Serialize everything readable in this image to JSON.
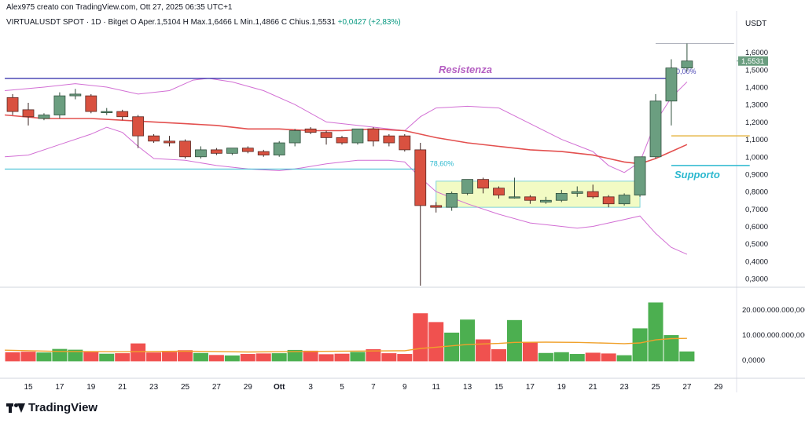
{
  "header": {
    "credit": "Alex975 creato con TradingView.com, Ott 27, 2025 06:35 UTC+1"
  },
  "legend": {
    "symbol": "VIRTUALUSDT SPOT · 1D · Bitget",
    "open_label": "O",
    "open": "Aper.1,5104",
    "high_label": "H",
    "high": "Max.1,6466",
    "low_label": "L",
    "low": "Min.1,4866",
    "close_label": "C",
    "close": "Chius.1,5531",
    "change": "+0,0427 (+2,83%)"
  },
  "brand": {
    "name": "TradingView"
  },
  "colors": {
    "up": "#6b9e80",
    "down": "#d95140",
    "vol_up": "#4caf50",
    "vol_down": "#f0514f",
    "bb": "#d26fd4",
    "ma": "#e3504f",
    "resistance": "#4b47b5",
    "support": "#2bb8cf",
    "fib": "#2bb8cf",
    "vol_ma": "#f0a12b",
    "gold_line": "#e6b84a",
    "range_box": "#f2fbc4"
  },
  "chart_data": {
    "type": "candlestick",
    "price_axis_label": "USDT",
    "price_range": [
      0.26,
      1.72
    ],
    "price_ticks": [
      "0,3000",
      "0,4000",
      "0,5000",
      "0,6000",
      "0,7000",
      "0,8000",
      "0,9000",
      "1,0000",
      "1,1000",
      "1,2000",
      "1,3000",
      "1,4000",
      "1,5000",
      "1,6000"
    ],
    "last_price_label": "1,5531",
    "volume_range": [
      -3000000000,
      27000000000
    ],
    "volume_ticks": [
      "0,0000",
      "10.000.000.000,0000",
      "20.000.000.000,0000"
    ],
    "x_ticks": [
      {
        "label": "15",
        "day": 0
      },
      {
        "label": "17",
        "day": 2
      },
      {
        "label": "19",
        "day": 4
      },
      {
        "label": "21",
        "day": 6
      },
      {
        "label": "23",
        "day": 8
      },
      {
        "label": "25",
        "day": 10
      },
      {
        "label": "27",
        "day": 12
      },
      {
        "label": "29",
        "day": 14
      },
      {
        "label": "Ott",
        "day": 16
      },
      {
        "label": "3",
        "day": 18
      },
      {
        "label": "5",
        "day": 20
      },
      {
        "label": "7",
        "day": 22
      },
      {
        "label": "9",
        "day": 24
      },
      {
        "label": "11",
        "day": 26
      },
      {
        "label": "13",
        "day": 28
      },
      {
        "label": "15",
        "day": 30
      },
      {
        "label": "17",
        "day": 32
      },
      {
        "label": "19",
        "day": 34
      },
      {
        "label": "21",
        "day": 36
      },
      {
        "label": "23",
        "day": 38
      },
      {
        "label": "25",
        "day": 40
      },
      {
        "label": "27",
        "day": 42
      },
      {
        "label": "29",
        "day": 44
      }
    ],
    "candles": [
      {
        "day": -1,
        "o": 1.34,
        "h": 1.36,
        "l": 1.24,
        "c": 1.26,
        "v": 3000000000
      },
      {
        "day": 0,
        "o": 1.27,
        "h": 1.31,
        "l": 1.18,
        "c": 1.23,
        "v": 3200000000
      },
      {
        "day": 1,
        "o": 1.22,
        "h": 1.25,
        "l": 1.21,
        "c": 1.24,
        "v": 2900000000
      },
      {
        "day": 2,
        "o": 1.24,
        "h": 1.37,
        "l": 1.22,
        "c": 1.35,
        "v": 4300000000
      },
      {
        "day": 3,
        "o": 1.35,
        "h": 1.39,
        "l": 1.33,
        "c": 1.36,
        "v": 4000000000
      },
      {
        "day": 4,
        "o": 1.35,
        "h": 1.36,
        "l": 1.25,
        "c": 1.26,
        "v": 3300000000
      },
      {
        "day": 5,
        "o": 1.26,
        "h": 1.28,
        "l": 1.24,
        "c": 1.26,
        "v": 2400000000
      },
      {
        "day": 6,
        "o": 1.26,
        "h": 1.27,
        "l": 1.21,
        "c": 1.23,
        "v": 2600000000
      },
      {
        "day": 7,
        "o": 1.23,
        "h": 1.24,
        "l": 1.05,
        "c": 1.12,
        "v": 6500000000
      },
      {
        "day": 8,
        "o": 1.12,
        "h": 1.13,
        "l": 1.08,
        "c": 1.09,
        "v": 2900000000
      },
      {
        "day": 9,
        "o": 1.09,
        "h": 1.12,
        "l": 1.06,
        "c": 1.08,
        "v": 3100000000
      },
      {
        "day": 10,
        "o": 1.09,
        "h": 1.1,
        "l": 0.99,
        "c": 1.0,
        "v": 3800000000
      },
      {
        "day": 11,
        "o": 1.0,
        "h": 1.06,
        "l": 0.99,
        "c": 1.04,
        "v": 2700000000
      },
      {
        "day": 12,
        "o": 1.04,
        "h": 1.05,
        "l": 1.01,
        "c": 1.02,
        "v": 1900000000
      },
      {
        "day": 13,
        "o": 1.02,
        "h": 1.05,
        "l": 1.01,
        "c": 1.05,
        "v": 1700000000
      },
      {
        "day": 14,
        "o": 1.05,
        "h": 1.06,
        "l": 1.02,
        "c": 1.03,
        "v": 2300000000
      },
      {
        "day": 15,
        "o": 1.03,
        "h": 1.04,
        "l": 1.0,
        "c": 1.01,
        "v": 2500000000
      },
      {
        "day": 16,
        "o": 1.01,
        "h": 1.09,
        "l": 1.0,
        "c": 1.08,
        "v": 2600000000
      },
      {
        "day": 17,
        "o": 1.08,
        "h": 1.16,
        "l": 1.06,
        "c": 1.15,
        "v": 3900000000
      },
      {
        "day": 18,
        "o": 1.16,
        "h": 1.17,
        "l": 1.13,
        "c": 1.14,
        "v": 3600000000
      },
      {
        "day": 19,
        "o": 1.14,
        "h": 1.15,
        "l": 1.07,
        "c": 1.11,
        "v": 2200000000
      },
      {
        "day": 20,
        "o": 1.11,
        "h": 1.12,
        "l": 1.07,
        "c": 1.08,
        "v": 2400000000
      },
      {
        "day": 21,
        "o": 1.08,
        "h": 1.16,
        "l": 1.07,
        "c": 1.16,
        "v": 3100000000
      },
      {
        "day": 22,
        "o": 1.16,
        "h": 1.17,
        "l": 1.06,
        "c": 1.09,
        "v": 4200000000
      },
      {
        "day": 23,
        "o": 1.12,
        "h": 1.13,
        "l": 1.06,
        "c": 1.08,
        "v": 2600000000
      },
      {
        "day": 24,
        "o": 1.12,
        "h": 1.13,
        "l": 1.03,
        "c": 1.04,
        "v": 2300000000
      },
      {
        "day": 25,
        "o": 1.04,
        "h": 1.08,
        "l": 0.26,
        "c": 0.72,
        "v": 18500000000
      },
      {
        "day": 26,
        "o": 0.72,
        "h": 0.74,
        "l": 0.68,
        "c": 0.71,
        "v": 15000000000
      },
      {
        "day": 27,
        "o": 0.71,
        "h": 0.8,
        "l": 0.69,
        "c": 0.79,
        "v": 10800000000
      },
      {
        "day": 28,
        "o": 0.79,
        "h": 0.87,
        "l": 0.78,
        "c": 0.87,
        "v": 16000000000
      },
      {
        "day": 29,
        "o": 0.87,
        "h": 0.88,
        "l": 0.79,
        "c": 0.82,
        "v": 8100000000
      },
      {
        "day": 30,
        "o": 0.82,
        "h": 0.83,
        "l": 0.76,
        "c": 0.78,
        "v": 4200000000
      },
      {
        "day": 31,
        "o": 0.77,
        "h": 0.88,
        "l": 0.76,
        "c": 0.77,
        "v": 15800000000
      },
      {
        "day": 32,
        "o": 0.77,
        "h": 0.78,
        "l": 0.73,
        "c": 0.75,
        "v": 7000000000
      },
      {
        "day": 33,
        "o": 0.74,
        "h": 0.77,
        "l": 0.73,
        "c": 0.75,
        "v": 2700000000
      },
      {
        "day": 34,
        "o": 0.75,
        "h": 0.81,
        "l": 0.74,
        "c": 0.79,
        "v": 3000000000
      },
      {
        "day": 35,
        "o": 0.79,
        "h": 0.83,
        "l": 0.77,
        "c": 0.8,
        "v": 2300000000
      },
      {
        "day": 36,
        "o": 0.8,
        "h": 0.84,
        "l": 0.76,
        "c": 0.77,
        "v": 2800000000
      },
      {
        "day": 37,
        "o": 0.77,
        "h": 0.78,
        "l": 0.71,
        "c": 0.73,
        "v": 2500000000
      },
      {
        "day": 38,
        "o": 0.73,
        "h": 0.79,
        "l": 0.72,
        "c": 0.78,
        "v": 1800000000
      },
      {
        "day": 39,
        "o": 0.78,
        "h": 1.0,
        "l": 0.77,
        "c": 1.0,
        "v": 12500000000
      },
      {
        "day": 40,
        "o": 1.0,
        "h": 1.36,
        "l": 0.99,
        "c": 1.32,
        "v": 22800000000
      },
      {
        "day": 41,
        "o": 1.32,
        "h": 1.56,
        "l": 1.18,
        "c": 1.51,
        "v": 9800000000
      },
      {
        "day": 42,
        "o": 1.51,
        "h": 1.65,
        "l": 1.49,
        "c": 1.55,
        "v": 3300000000
      }
    ],
    "bb_upper": [
      [
        -1.5,
        1.38
      ],
      [
        1,
        1.4
      ],
      [
        3,
        1.42
      ],
      [
        5,
        1.4
      ],
      [
        7,
        1.36
      ],
      [
        9,
        1.38
      ],
      [
        10.5,
        1.44
      ],
      [
        11.5,
        1.45
      ],
      [
        13,
        1.43
      ],
      [
        15,
        1.38
      ],
      [
        17,
        1.3
      ],
      [
        19,
        1.2
      ],
      [
        21,
        1.18
      ],
      [
        23,
        1.16
      ],
      [
        24,
        1.15
      ],
      [
        25,
        1.23
      ],
      [
        26,
        1.28
      ],
      [
        28,
        1.29
      ],
      [
        30,
        1.28
      ],
      [
        32,
        1.19
      ],
      [
        34,
        1.1
      ],
      [
        36,
        1.03
      ],
      [
        37,
        0.95
      ],
      [
        38,
        0.91
      ],
      [
        39,
        0.97
      ],
      [
        40,
        1.2
      ],
      [
        41,
        1.34
      ],
      [
        42,
        1.43
      ]
    ],
    "bb_lower": [
      [
        -1.5,
        1.0
      ],
      [
        0,
        1.01
      ],
      [
        2,
        1.07
      ],
      [
        4,
        1.13
      ],
      [
        5,
        1.17
      ],
      [
        6,
        1.14
      ],
      [
        7,
        1.06
      ],
      [
        8,
        0.99
      ],
      [
        10,
        0.98
      ],
      [
        12,
        0.95
      ],
      [
        14,
        0.93
      ],
      [
        16,
        0.92
      ],
      [
        17,
        0.93
      ],
      [
        19,
        0.96
      ],
      [
        21,
        0.98
      ],
      [
        23,
        0.98
      ],
      [
        24,
        0.97
      ],
      [
        25,
        0.88
      ],
      [
        26,
        0.8
      ],
      [
        28,
        0.73
      ],
      [
        30,
        0.67
      ],
      [
        32,
        0.62
      ],
      [
        34,
        0.6
      ],
      [
        35,
        0.59
      ],
      [
        36,
        0.6
      ],
      [
        37,
        0.62
      ],
      [
        38,
        0.64
      ],
      [
        39,
        0.66
      ],
      [
        40,
        0.56
      ],
      [
        41,
        0.48
      ],
      [
        42,
        0.44
      ]
    ],
    "ma_line": [
      [
        -1.5,
        1.24
      ],
      [
        1,
        1.22
      ],
      [
        4,
        1.22
      ],
      [
        6,
        1.21
      ],
      [
        8,
        1.2
      ],
      [
        10,
        1.19
      ],
      [
        12,
        1.18
      ],
      [
        14,
        1.16
      ],
      [
        16,
        1.16
      ],
      [
        18,
        1.15
      ],
      [
        20,
        1.15
      ],
      [
        22,
        1.16
      ],
      [
        24,
        1.15
      ],
      [
        26,
        1.11
      ],
      [
        28,
        1.08
      ],
      [
        30,
        1.06
      ],
      [
        32,
        1.04
      ],
      [
        34,
        1.03
      ],
      [
        36,
        1.01
      ],
      [
        37,
        0.99
      ],
      [
        38,
        0.97
      ],
      [
        39,
        0.96
      ],
      [
        40,
        0.99
      ],
      [
        41,
        1.03
      ],
      [
        42,
        1.07
      ]
    ],
    "vol_ma": [
      [
        -1.5,
        3800000000
      ],
      [
        2,
        3300000000
      ],
      [
        6,
        3200000000
      ],
      [
        10,
        3400000000
      ],
      [
        14,
        3100000000
      ],
      [
        18,
        3300000000
      ],
      [
        22,
        3500000000
      ],
      [
        24,
        3600000000
      ],
      [
        25,
        4500000000
      ],
      [
        26,
        5000000000
      ],
      [
        28,
        6100000000
      ],
      [
        30,
        6500000000
      ],
      [
        31,
        6900000000
      ],
      [
        33,
        7000000000
      ],
      [
        35,
        6900000000
      ],
      [
        37,
        6600000000
      ],
      [
        38,
        6400000000
      ],
      [
        39,
        6700000000
      ],
      [
        40,
        7900000000
      ],
      [
        41,
        8400000000
      ],
      [
        42,
        8500000000
      ]
    ],
    "resistance": {
      "label": "Resistenza",
      "price": 1.45,
      "from_day": -1.5,
      "to_day": 41
    },
    "support": {
      "label": "Supporto",
      "price": 0.95,
      "from_day": 41,
      "to_day": 46
    },
    "fib_level": {
      "label": "78,60%",
      "price": 0.93,
      "from_day": -1.5,
      "to_day": 25
    },
    "fib_top": {
      "label": "0,00%",
      "price": 1.65,
      "from_day": 40,
      "to_day": 45
    },
    "gold_level": {
      "price": 1.12,
      "from_day": 41,
      "to_day": 46
    },
    "range_box": {
      "from_day": 26,
      "to_day": 39,
      "top": 0.86,
      "bottom": 0.71
    }
  }
}
